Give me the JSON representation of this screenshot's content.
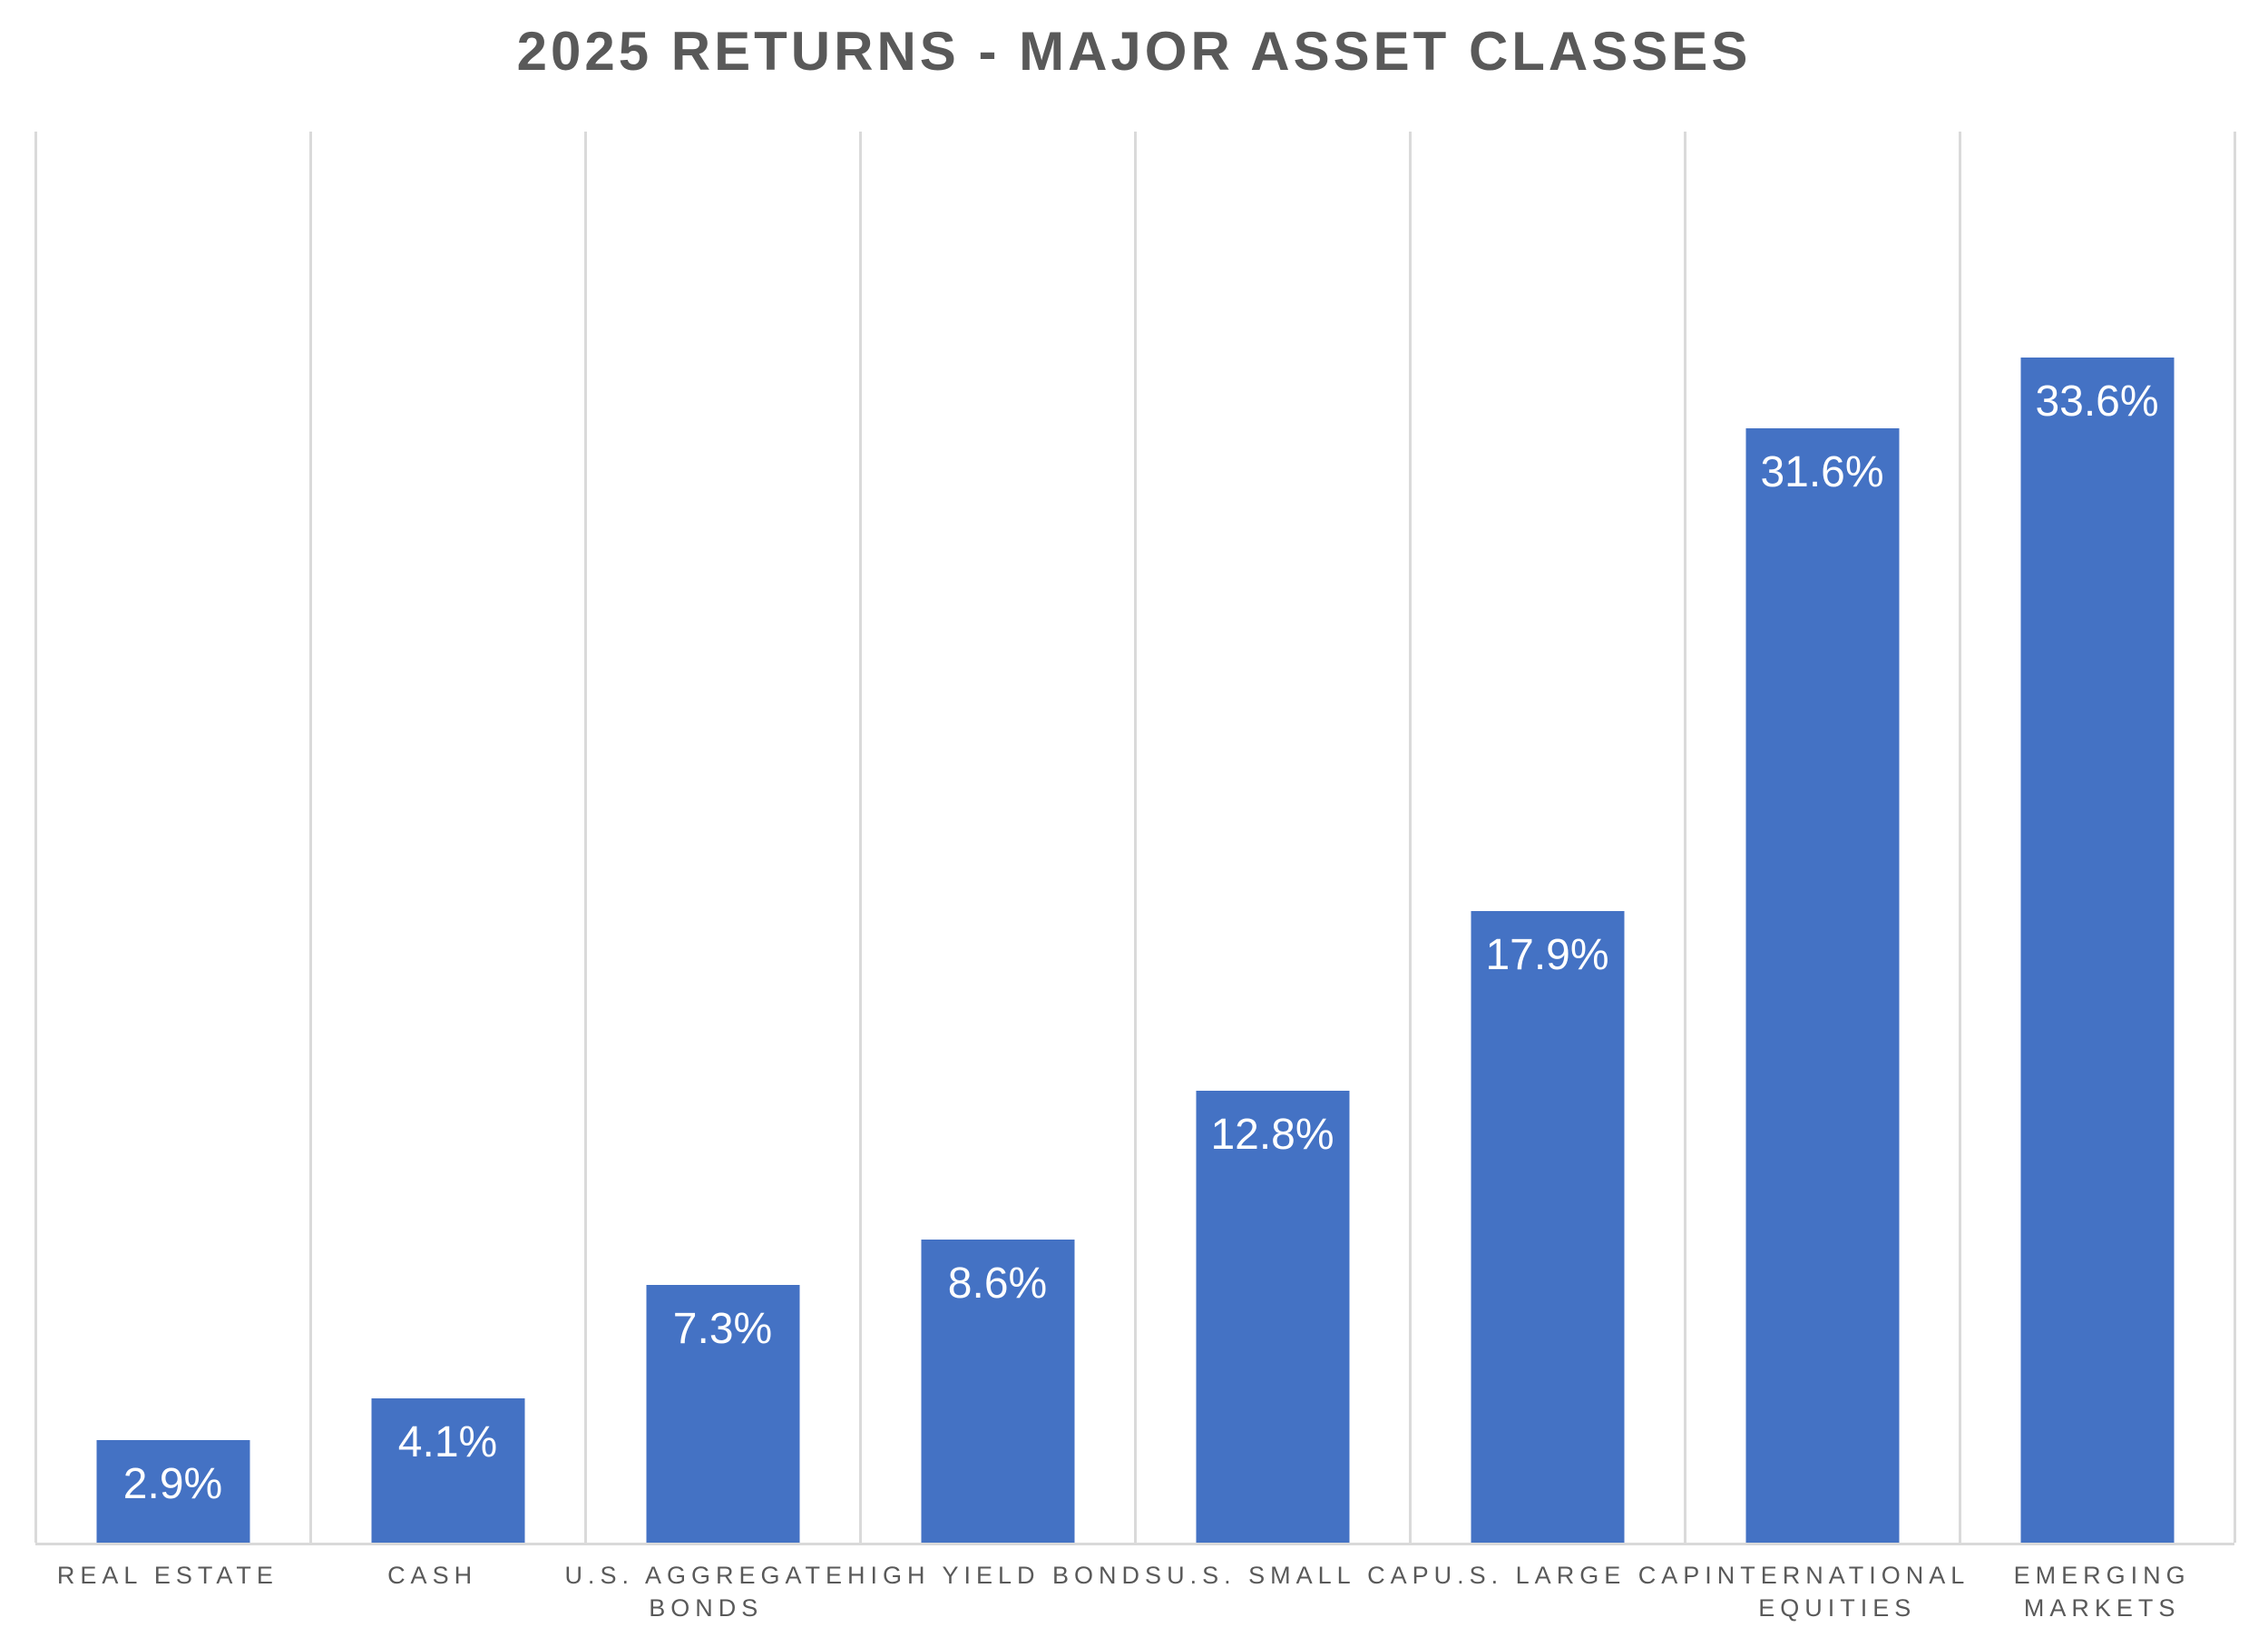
{
  "title": "2025 RETURNS - MAJOR ASSET CLASSES",
  "chart_data": {
    "type": "bar",
    "title": "2025 RETURNS - MAJOR ASSET CLASSES",
    "categories": [
      "REAL ESTATE",
      "CASH",
      "U.S. AGGREGATE BONDS",
      "HIGH YIELD BONDS",
      "U.S. SMALL CAP",
      "U.S. LARGE CAP",
      "INTERNATIONAL EQUITIES",
      "EMERGING MARKETS"
    ],
    "category_label_lines": [
      [
        "REAL ESTATE"
      ],
      [
        "CASH"
      ],
      [
        "U.S. AGGREGATE",
        "BONDS"
      ],
      [
        "HIGH YIELD BONDS"
      ],
      [
        "U.S. SMALL CAP"
      ],
      [
        "U.S. LARGE CAP"
      ],
      [
        "INTERNATIONAL",
        "EQUITIES"
      ],
      [
        "EMERGING",
        "MARKETS"
      ]
    ],
    "values": [
      2.9,
      4.1,
      7.3,
      8.6,
      12.8,
      17.9,
      31.6,
      33.6
    ],
    "data_labels": [
      "2.9%",
      "4.1%",
      "7.3%",
      "8.6%",
      "12.8%",
      "17.9%",
      "31.6%",
      "33.6%"
    ],
    "xlabel": "",
    "ylabel": "",
    "ylim": [
      0,
      40
    ],
    "grid": "vertical category boundaries only",
    "legend": "none",
    "data_label_position": "inside-top",
    "colors": {
      "bar": "#4472C4",
      "data_label": "#FFFFFF",
      "title": "#595959",
      "category_label": "#595959",
      "gridline": "#DADADA",
      "axis_line": "#D9D9D9",
      "background": "#FFFFFF"
    }
  }
}
